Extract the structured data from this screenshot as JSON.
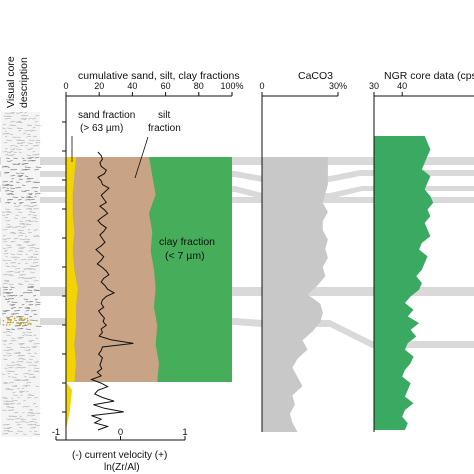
{
  "colors": {
    "sand": "#f4d400",
    "silt": "#c8a385",
    "clay": "#46ad5a",
    "caco3": "#c8c8c8",
    "ngr": "#3aaa62",
    "correlation_band": "#d9d9d9",
    "core_log": "#bdbdbd",
    "zr_al_line": "#111111"
  },
  "chart_data": [
    {
      "type": "area",
      "title": "cumulative sand, silt, clay fractions",
      "x_ticks": [
        "0",
        "20",
        "40",
        "60",
        "80",
        "100%"
      ],
      "xlim": [
        0,
        100
      ],
      "depth_samples": 13,
      "depth_ticks": 11,
      "series": [
        {
          "name": "sand fraction (> 63 µm)",
          "cumulative_upper": [
            6,
            5,
            4,
            4,
            5,
            4,
            5,
            7,
            6,
            6,
            5,
            6,
            5
          ]
        },
        {
          "name": "silt fraction",
          "cumulative_upper": [
            50,
            52,
            54,
            50,
            52,
            51,
            53,
            54,
            53,
            55,
            54,
            56,
            55
          ]
        },
        {
          "name": "clay fraction (< 7 µm)",
          "cumulative_upper": [
            100,
            100,
            100,
            100,
            100,
            100,
            100,
            100,
            100,
            100,
            100,
            100,
            100
          ]
        }
      ],
      "annotations": {
        "sand_line1": "sand fraction",
        "sand_line2": "(> 63 µm)",
        "silt_line1": "silt",
        "silt_line2": "fraction",
        "clay_line1": "clay fraction",
        "clay_line2": "(< 7 µm)"
      }
    },
    {
      "type": "line",
      "title": "ln(Zr/Al)",
      "xlabel_line1": "(-)  current velocity  (+)",
      "xlabel": "ln(Zr/Al)",
      "x_ticks": [
        "-1",
        "0",
        "1"
      ],
      "xlim": [
        -1,
        1
      ],
      "series": [
        {
          "name": "ln(Zr/Al)",
          "values": [
            -0.35,
            -0.3,
            -0.28,
            -0.32,
            -0.3,
            -0.22,
            -0.25,
            -0.35,
            -0.3,
            -0.28,
            -0.18,
            -0.24,
            -0.3,
            -0.26,
            -0.22,
            -0.32,
            -0.25,
            -0.2,
            -0.28,
            -0.35,
            -0.3,
            -0.22,
            -0.26,
            -0.32,
            -0.28,
            -0.24,
            -0.3,
            -0.38,
            -0.32,
            -0.26,
            -0.3,
            -0.36,
            -0.28,
            -0.22,
            -0.18,
            -0.26,
            -0.3,
            -0.24,
            -0.2,
            -0.1,
            -0.22,
            -0.28,
            -0.3,
            -0.26,
            -0.34,
            -0.3,
            -0.25,
            -0.27,
            -0.22,
            -0.3,
            -0.28,
            -0.33,
            -0.15,
            0.2,
            -0.28,
            -0.3,
            -0.34,
            -0.28,
            -0.3,
            -0.32,
            -0.29,
            -0.36,
            -0.3,
            -0.45,
            -0.3,
            -0.2,
            -0.35,
            -0.4,
            -0.28,
            -0.1,
            -0.42,
            -0.25,
            0.05,
            -0.45,
            -0.3,
            -0.4,
            -0.2,
            -0.35
          ]
        }
      ]
    },
    {
      "type": "area",
      "title": "CaCO3",
      "x_ticks": [
        "0",
        "30%"
      ],
      "xlim": [
        0,
        30
      ],
      "series": [
        {
          "name": "CaCO3",
          "values": [
            26,
            26,
            26,
            26,
            25,
            24,
            26,
            24,
            24,
            26,
            25,
            26,
            24,
            25,
            22,
            18,
            23,
            24,
            23,
            20,
            16,
            18,
            14,
            12,
            14,
            16,
            12,
            13,
            11,
            12,
            14
          ]
        }
      ]
    },
    {
      "type": "area",
      "title": "NGR core data (cps)",
      "x_ticks": [
        "30",
        "40"
      ],
      "xlim": [
        30,
        52
      ],
      "series": [
        {
          "name": "NGR",
          "values": [
            48,
            49,
            50,
            49,
            48,
            47,
            50,
            49,
            48,
            50,
            51,
            49,
            50,
            48,
            49,
            50,
            47,
            46,
            49,
            48,
            47,
            45,
            47,
            46,
            43,
            41,
            44,
            42,
            46,
            43,
            45,
            42,
            41,
            44,
            43,
            41,
            40,
            43,
            42,
            41,
            44,
            41,
            40,
            42,
            41
          ]
        }
      ]
    }
  ],
  "core": {
    "title_line1": "Visual core",
    "title_line2": "description"
  }
}
